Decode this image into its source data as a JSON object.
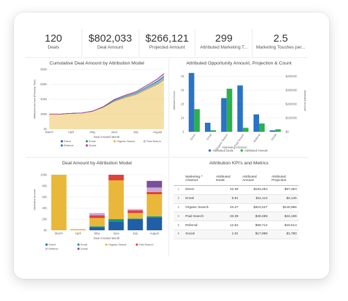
{
  "kpis": [
    {
      "value": "120",
      "label": "Deals"
    },
    {
      "value": "$802,033",
      "label": "Deal Amount"
    },
    {
      "value": "$266,121",
      "label": "Projected Amount"
    },
    {
      "value": "299",
      "label": "Attributed Marketing T..."
    },
    {
      "value": "2.5",
      "label": "Marketing Touches per..."
    }
  ],
  "colors": {
    "direct": "#1f5fa8",
    "email": "#1a9a77",
    "organic": "#e9b73a",
    "paid": "#c9a8dc",
    "referral": "#2a73c7",
    "social": "#b8338b",
    "red": "#e0413d"
  },
  "panels": {
    "cumulative_title": "Cumulative Deal Amount by Attribution Model",
    "opportunity_title": "Attributed Opportunity Amount, Projection & Count",
    "deal_title": "Deal Amount by Attribution Model",
    "kpi_table_title": "Attribution KPI's and Metrics"
  },
  "chart_data": [
    {
      "type": "area",
      "title": "Cumulative Deal Amount by Attribution Model",
      "xlabel": "Deal Created Month",
      "ylabel": "Attributed Amount (Running Total)",
      "categories": [
        "March",
        "April",
        "May",
        "June",
        "July",
        "August"
      ],
      "ylim": [
        0,
        800000
      ],
      "yticks": [
        "0K",
        "200K",
        "400K",
        "600K",
        "800K"
      ],
      "x": [
        0,
        0.5,
        1,
        1.5,
        2,
        2.5,
        3,
        3.5,
        4,
        4.5,
        5,
        5.3
      ],
      "series": [
        {
          "name": "Direct",
          "values": [
            0,
            0,
            0,
            0,
            0,
            5000,
            15000,
            20000,
            25000,
            30000,
            38000,
            42000
          ]
        },
        {
          "name": "Email",
          "values": [
            0,
            0,
            0,
            0,
            0,
            0,
            0,
            0,
            0,
            2000,
            5000,
            6000
          ]
        },
        {
          "name": "Organic Search",
          "values": [
            200000,
            200000,
            210000,
            215000,
            240000,
            290000,
            370000,
            420000,
            460000,
            530000,
            600000,
            660000
          ]
        },
        {
          "name": "Paid Search",
          "values": [
            0,
            0,
            0,
            0,
            0,
            5000,
            10000,
            12000,
            15000,
            20000,
            25000,
            28000
          ]
        },
        {
          "name": "Referral",
          "values": [
            0,
            0,
            0,
            0,
            0,
            0,
            0,
            0,
            0,
            2000,
            5000,
            6000
          ]
        },
        {
          "name": "Social",
          "values": [
            0,
            0,
            0,
            0,
            0,
            0,
            0,
            0,
            0,
            0,
            0,
            2000
          ]
        }
      ]
    },
    {
      "type": "bar",
      "title": "Attributed Opportunity Amount, Projection & Count",
      "xlabel": "Marketing Channel",
      "ylabel": "Attributed Deals",
      "ylabel_right": "Attributed Amount",
      "categories": [
        "Direct",
        "Email",
        "Organic Search",
        "Paid Search",
        "Referral",
        "Social"
      ],
      "ylim": [
        0,
        45
      ],
      "yticks": [
        "0",
        "10",
        "20",
        "30",
        "40"
      ],
      "ylim_right": [
        0,
        450000
      ],
      "yticks_right": [
        "$0",
        "$100000",
        "$200000",
        "$300000",
        "$400000"
      ],
      "series": [
        {
          "name": "Attributed Deals",
          "values": [
            42.38,
            6.51,
            24.27,
            33.39,
            12.52,
            1.01
          ]
        },
        {
          "name": "Attributed Amount",
          "values": [
            163254,
            11112,
            310427,
            28489,
            59712,
            17989
          ]
        }
      ]
    },
    {
      "type": "bar",
      "title": "Deal Amount by Attribution Model",
      "xlabel": "Deal Created Month",
      "ylabel": "Attributed Amount",
      "categories": [
        "March",
        "April",
        "May",
        "June",
        "July",
        "August"
      ],
      "ylim": [
        0,
        110000
      ],
      "yticks": [
        "0K",
        "20K",
        "40K",
        "60K",
        "80K",
        "100K"
      ],
      "series": [
        {
          "name": "Direct",
          "values": [
            0,
            0,
            5000,
            15000,
            20000,
            23000
          ]
        },
        {
          "name": "Email",
          "values": [
            0,
            0,
            2000,
            5000,
            1000,
            2000
          ]
        },
        {
          "name": "Organic Search",
          "values": [
            100000,
            2000,
            15000,
            70000,
            10000,
            40000
          ]
        },
        {
          "name": "Paid Search",
          "values": [
            0,
            0,
            5000,
            10000,
            5000,
            4000
          ]
        },
        {
          "name": "Referral",
          "values": [
            0,
            0,
            4000,
            0,
            2000,
            8000
          ]
        },
        {
          "name": "Social",
          "values": [
            0,
            0,
            0,
            0,
            0,
            12000
          ]
        }
      ]
    }
  ],
  "legend": {
    "cumulative": [
      "Direct",
      "Email",
      "Organic Search",
      "Paid Search",
      "Referral",
      "Social"
    ],
    "opportunity": [
      "Attributed Deals",
      "Attributed Amount"
    ],
    "deal": [
      "Direct",
      "Email",
      "Organic Search",
      "Paid Search",
      "Referral",
      "Social"
    ]
  },
  "kpi_table": {
    "headers": [
      "Marketing ^ Channel",
      "Attributed Deals",
      "Attributed Amount",
      "Attributed Projection"
    ],
    "rows": [
      {
        "n": "1",
        "channel": "Direct",
        "deals": "42.38",
        "amount": "$163,254",
        "projection": "$57,364"
      },
      {
        "n": "2",
        "channel": "Email",
        "deals": "6.51",
        "amount": "$11,112",
        "projection": "$2,145"
      },
      {
        "n": "3",
        "channel": "Organic Search",
        "deals": "24.27",
        "amount": "$310,427",
        "projection": "$140,986"
      },
      {
        "n": "4",
        "channel": "Paid Search",
        "deals": "33.39",
        "amount": "$28,489",
        "projection": "$24,199"
      },
      {
        "n": "5",
        "channel": "Referral",
        "deals": "12.52",
        "amount": "$59,712",
        "projection": "$19,514"
      },
      {
        "n": "6",
        "channel": "Social",
        "deals": "1.01",
        "amount": "$17,989",
        "projection": "$1,790"
      }
    ]
  }
}
